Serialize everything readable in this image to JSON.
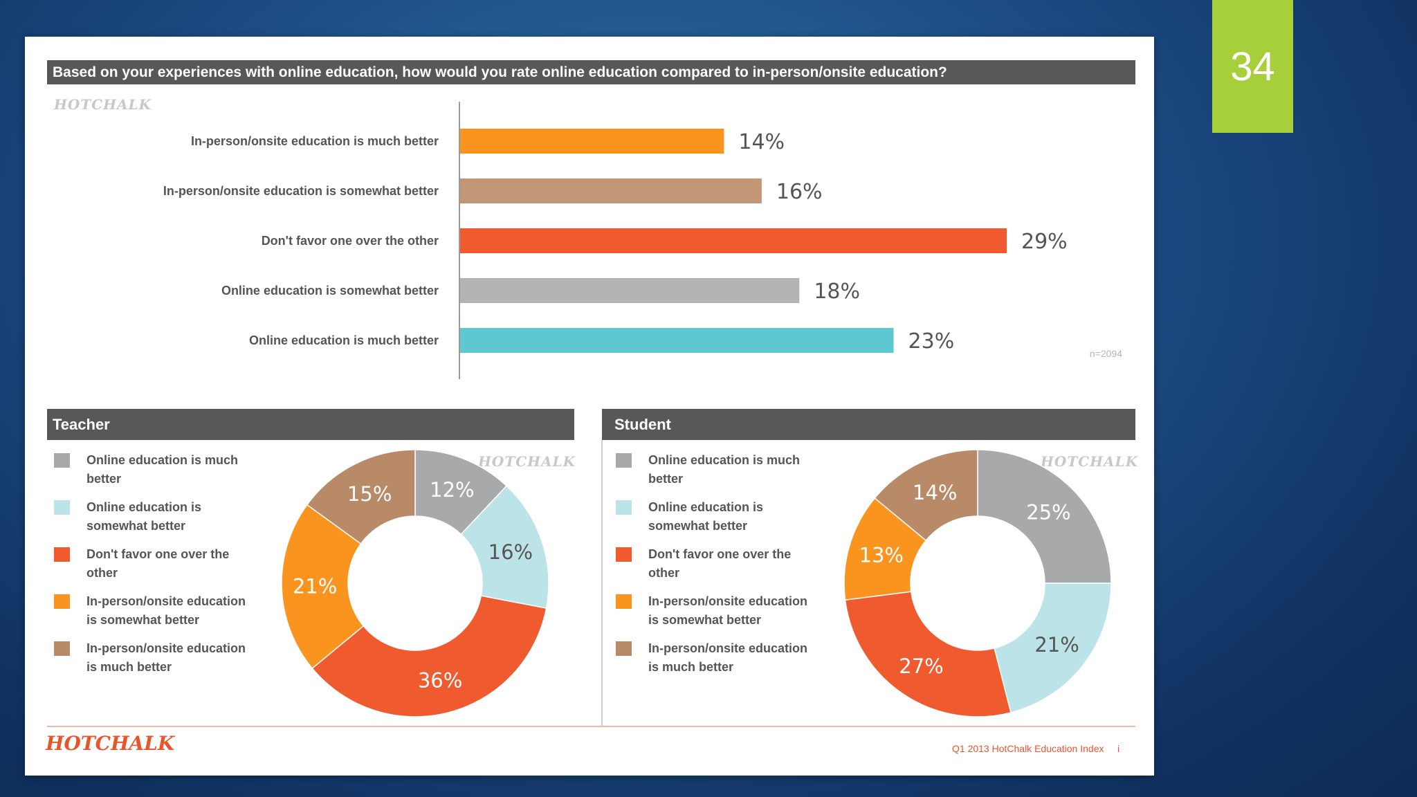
{
  "slide_number": "34",
  "logo_text": "HOTCHALK",
  "footer_source": "Q1 2013 HotChalk Education Index",
  "footer_page": "i",
  "colors": {
    "online_much": "#a8a9ab",
    "online_somewhat": "#bce4e8",
    "neutral": "#ef5a2f",
    "inperson_somewhat": "#f9951f",
    "inperson_much": "#b88a67",
    "bar_online_much": "#5ec8d2",
    "bar_online_somewhat": "#b3b4b6",
    "bar_neutral": "#ef5a2f",
    "bar_inperson_somewhat": "#c19575",
    "bar_inperson_much": "#f9951f"
  },
  "chart_data": [
    {
      "type": "bar",
      "orientation": "horizontal",
      "title": "Based on your experiences with online education, how would you rate online education compared to in-person/onsite education?",
      "categories": [
        "In-person/onsite education is much better",
        "In-person/onsite education is somewhat better",
        "Don't favor one over the other",
        "Online education is somewhat better",
        "Online education is much better"
      ],
      "values": [
        14,
        16,
        29,
        18,
        23
      ],
      "value_labels": [
        "14%",
        "16%",
        "29%",
        "18%",
        "23%"
      ],
      "note": "n=2094",
      "xlim": [
        0,
        32
      ]
    },
    {
      "type": "pie",
      "variant": "donut",
      "title": "Teacher",
      "legend": [
        "Online education is much better",
        "Online education is somewhat better",
        "Don't favor one over the other",
        "In-person/onsite education is somewhat better",
        "In-person/onsite education is much better"
      ],
      "values": [
        12,
        16,
        36,
        21,
        15
      ],
      "value_labels": [
        "12%",
        "16%",
        "36%",
        "21%",
        "15%"
      ]
    },
    {
      "type": "pie",
      "variant": "donut",
      "title": "Student",
      "legend": [
        "Online education is much better",
        "Online education is somewhat better",
        "Don't favor one over the other",
        "In-person/onsite education is somewhat better",
        "In-person/onsite education is much better"
      ],
      "values": [
        25,
        21,
        27,
        13,
        14
      ],
      "value_labels": [
        "25%",
        "21%",
        "27%",
        "13%",
        "14%"
      ]
    }
  ]
}
